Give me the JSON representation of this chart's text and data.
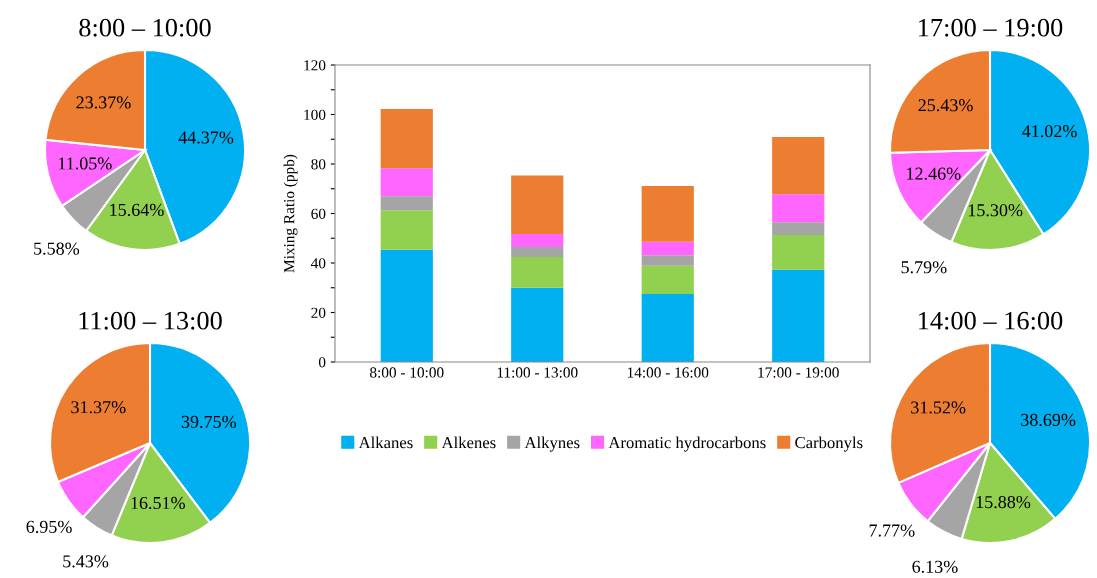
{
  "chart_data": [
    {
      "type": "pie",
      "title": "8:00 – 10:00",
      "values": [
        44.37,
        15.64,
        5.58,
        11.05,
        23.37
      ],
      "colors": [
        "#00b0f0",
        "#92d050",
        "#a5a5a5",
        "#ff66ff",
        "#ed7d31"
      ],
      "value_labels": [
        "44.37%",
        "15.64%",
        "5.58%",
        "11.05%",
        "23.37%"
      ]
    },
    {
      "type": "bar",
      "stacked": true,
      "ylabel": "Mixing Ratio (ppb)",
      "categories": [
        "8:00 - 10:00",
        "11:00 - 13:00",
        "14:00 - 16:00",
        "17:00 - 19:00"
      ],
      "ylim": [
        0,
        120
      ],
      "yticks": [
        0,
        {
          "value": 10,
          "label": null
        },
        20,
        {
          "value": 30,
          "label": null
        },
        40,
        {
          "value": 50,
          "label": null
        },
        60,
        {
          "value": 70,
          "label": null
        },
        80,
        {
          "value": 90,
          "label": null
        },
        100,
        {
          "value": 110,
          "label": null
        },
        120
      ],
      "legend": "bottom",
      "series": [
        {
          "name": "Alkanes",
          "color": "#00b0f0",
          "values": [
            45.4,
            30.0,
            27.5,
            37.3
          ]
        },
        {
          "name": "Alkenes",
          "color": "#92d050",
          "values": [
            15.9,
            12.4,
            11.4,
            14.0
          ]
        },
        {
          "name": "Alkynes",
          "color": "#a5a5a5",
          "values": [
            5.7,
            4.1,
            4.2,
            5.2
          ]
        },
        {
          "name": "Aromatic hydrocarbons",
          "color": "#ff66ff",
          "values": [
            11.3,
            5.2,
            5.5,
            11.3
          ]
        },
        {
          "name": "Carbonyls",
          "color": "#ed7d31",
          "values": [
            23.9,
            23.7,
            22.5,
            23.1
          ]
        }
      ]
    },
    {
      "type": "pie",
      "title": "17:00 – 19:00",
      "values": [
        41.02,
        15.3,
        5.79,
        12.46,
        25.43
      ],
      "colors": [
        "#00b0f0",
        "#92d050",
        "#a5a5a5",
        "#ff66ff",
        "#ed7d31"
      ],
      "value_labels": [
        "41.02%",
        "15.30%",
        "5.79%",
        "12.46%",
        "25.43%"
      ]
    },
    {
      "type": "pie",
      "title": "11:00 – 13:00",
      "values": [
        39.75,
        16.51,
        5.43,
        6.95,
        31.37
      ],
      "colors": [
        "#00b0f0",
        "#92d050",
        "#a5a5a5",
        "#ff66ff",
        "#ed7d31"
      ],
      "value_labels": [
        "39.75%",
        "16.51%",
        "5.43%",
        "6.95%",
        "31.37%"
      ]
    },
    {
      "type": "pie",
      "title": "14:00 – 16:00",
      "values": [
        38.69,
        15.88,
        6.13,
        7.77,
        31.52
      ],
      "colors": [
        "#00b0f0",
        "#92d050",
        "#a5a5a5",
        "#ff66ff",
        "#ed7d31"
      ],
      "value_labels": [
        "38.69%",
        "15.88%",
        "6.13%",
        "7.77%",
        "31.52%"
      ]
    }
  ]
}
